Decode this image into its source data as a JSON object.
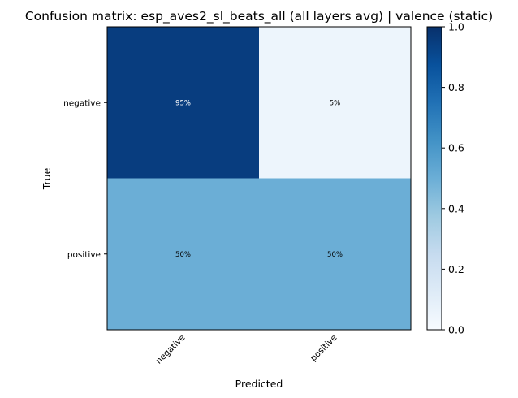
{
  "chart_data": {
    "type": "heatmap",
    "title": "Confusion matrix: esp_aves2_sl_beats_all (all layers avg) | valence (static)",
    "xlabel": "Predicted",
    "ylabel": "True",
    "x_categories": [
      "negative",
      "positive"
    ],
    "y_categories": [
      "negative",
      "positive"
    ],
    "values": [
      [
        0.95,
        0.05
      ],
      [
        0.5,
        0.5
      ]
    ],
    "cell_labels": [
      [
        "95%",
        "5%"
      ],
      [
        "50%",
        "50%"
      ]
    ],
    "colormap": "Blues",
    "vmin": 0.0,
    "vmax": 1.0,
    "colorbar_ticks": [
      "0.0",
      "0.2",
      "0.4",
      "0.6",
      "0.8",
      "1.0"
    ],
    "colorbar_position": "right"
  }
}
